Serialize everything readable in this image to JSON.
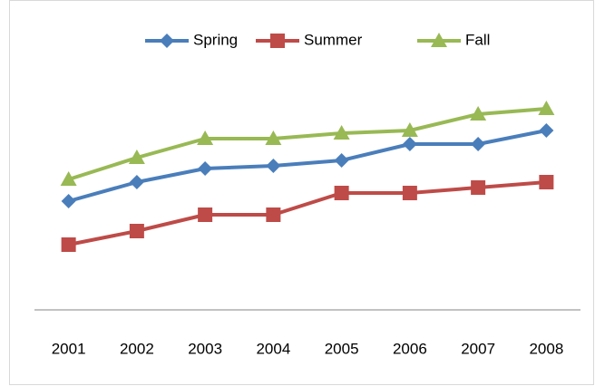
{
  "chart_data": {
    "type": "line",
    "categories": [
      "2001",
      "2002",
      "2003",
      "2004",
      "2005",
      "2006",
      "2007",
      "2008"
    ],
    "series": [
      {
        "name": "Spring",
        "color": "#4a7ebb",
        "marker": "diamond",
        "values": [
          4.0,
          4.7,
          5.2,
          5.3,
          5.5,
          6.1,
          6.1,
          6.6
        ]
      },
      {
        "name": "Summer",
        "color": "#be4b48",
        "marker": "square",
        "values": [
          2.4,
          2.9,
          3.5,
          3.5,
          4.3,
          4.3,
          4.5,
          4.7
        ]
      },
      {
        "name": "Fall",
        "color": "#98b954",
        "marker": "triangle",
        "values": [
          4.8,
          5.6,
          6.3,
          6.3,
          6.5,
          6.6,
          7.2,
          7.4
        ]
      }
    ],
    "ylim": [
      0,
      10
    ],
    "legend": "top"
  }
}
